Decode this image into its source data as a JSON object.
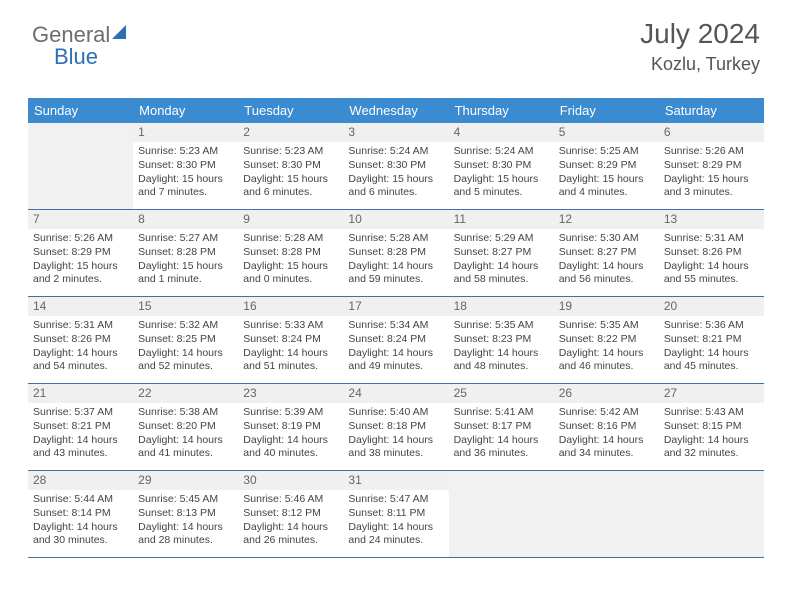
{
  "brand": {
    "part1": "General",
    "part2": "Blue"
  },
  "title": "July 2024",
  "location": "Kozlu, Turkey",
  "colors": {
    "header_bg": "#3b8bd0",
    "header_text": "#ffffff",
    "row_border": "#3b72a8",
    "daynum_bg": "#f0f0f0",
    "empty_bg": "#f1f1f1",
    "text": "#444444",
    "title_text": "#555555",
    "logo_gray": "#6e6e6e",
    "logo_blue": "#2e6fb6"
  },
  "dow": [
    "Sunday",
    "Monday",
    "Tuesday",
    "Wednesday",
    "Thursday",
    "Friday",
    "Saturday"
  ],
  "weeks": [
    [
      null,
      {
        "day": "1",
        "sunrise": "5:23 AM",
        "sunset": "8:30 PM",
        "daylight": "15 hours and 7 minutes."
      },
      {
        "day": "2",
        "sunrise": "5:23 AM",
        "sunset": "8:30 PM",
        "daylight": "15 hours and 6 minutes."
      },
      {
        "day": "3",
        "sunrise": "5:24 AM",
        "sunset": "8:30 PM",
        "daylight": "15 hours and 6 minutes."
      },
      {
        "day": "4",
        "sunrise": "5:24 AM",
        "sunset": "8:30 PM",
        "daylight": "15 hours and 5 minutes."
      },
      {
        "day": "5",
        "sunrise": "5:25 AM",
        "sunset": "8:29 PM",
        "daylight": "15 hours and 4 minutes."
      },
      {
        "day": "6",
        "sunrise": "5:26 AM",
        "sunset": "8:29 PM",
        "daylight": "15 hours and 3 minutes."
      }
    ],
    [
      {
        "day": "7",
        "sunrise": "5:26 AM",
        "sunset": "8:29 PM",
        "daylight": "15 hours and 2 minutes."
      },
      {
        "day": "8",
        "sunrise": "5:27 AM",
        "sunset": "8:28 PM",
        "daylight": "15 hours and 1 minute."
      },
      {
        "day": "9",
        "sunrise": "5:28 AM",
        "sunset": "8:28 PM",
        "daylight": "15 hours and 0 minutes."
      },
      {
        "day": "10",
        "sunrise": "5:28 AM",
        "sunset": "8:28 PM",
        "daylight": "14 hours and 59 minutes."
      },
      {
        "day": "11",
        "sunrise": "5:29 AM",
        "sunset": "8:27 PM",
        "daylight": "14 hours and 58 minutes."
      },
      {
        "day": "12",
        "sunrise": "5:30 AM",
        "sunset": "8:27 PM",
        "daylight": "14 hours and 56 minutes."
      },
      {
        "day": "13",
        "sunrise": "5:31 AM",
        "sunset": "8:26 PM",
        "daylight": "14 hours and 55 minutes."
      }
    ],
    [
      {
        "day": "14",
        "sunrise": "5:31 AM",
        "sunset": "8:26 PM",
        "daylight": "14 hours and 54 minutes."
      },
      {
        "day": "15",
        "sunrise": "5:32 AM",
        "sunset": "8:25 PM",
        "daylight": "14 hours and 52 minutes."
      },
      {
        "day": "16",
        "sunrise": "5:33 AM",
        "sunset": "8:24 PM",
        "daylight": "14 hours and 51 minutes."
      },
      {
        "day": "17",
        "sunrise": "5:34 AM",
        "sunset": "8:24 PM",
        "daylight": "14 hours and 49 minutes."
      },
      {
        "day": "18",
        "sunrise": "5:35 AM",
        "sunset": "8:23 PM",
        "daylight": "14 hours and 48 minutes."
      },
      {
        "day": "19",
        "sunrise": "5:35 AM",
        "sunset": "8:22 PM",
        "daylight": "14 hours and 46 minutes."
      },
      {
        "day": "20",
        "sunrise": "5:36 AM",
        "sunset": "8:21 PM",
        "daylight": "14 hours and 45 minutes."
      }
    ],
    [
      {
        "day": "21",
        "sunrise": "5:37 AM",
        "sunset": "8:21 PM",
        "daylight": "14 hours and 43 minutes."
      },
      {
        "day": "22",
        "sunrise": "5:38 AM",
        "sunset": "8:20 PM",
        "daylight": "14 hours and 41 minutes."
      },
      {
        "day": "23",
        "sunrise": "5:39 AM",
        "sunset": "8:19 PM",
        "daylight": "14 hours and 40 minutes."
      },
      {
        "day": "24",
        "sunrise": "5:40 AM",
        "sunset": "8:18 PM",
        "daylight": "14 hours and 38 minutes."
      },
      {
        "day": "25",
        "sunrise": "5:41 AM",
        "sunset": "8:17 PM",
        "daylight": "14 hours and 36 minutes."
      },
      {
        "day": "26",
        "sunrise": "5:42 AM",
        "sunset": "8:16 PM",
        "daylight": "14 hours and 34 minutes."
      },
      {
        "day": "27",
        "sunrise": "5:43 AM",
        "sunset": "8:15 PM",
        "daylight": "14 hours and 32 minutes."
      }
    ],
    [
      {
        "day": "28",
        "sunrise": "5:44 AM",
        "sunset": "8:14 PM",
        "daylight": "14 hours and 30 minutes."
      },
      {
        "day": "29",
        "sunrise": "5:45 AM",
        "sunset": "8:13 PM",
        "daylight": "14 hours and 28 minutes."
      },
      {
        "day": "30",
        "sunrise": "5:46 AM",
        "sunset": "8:12 PM",
        "daylight": "14 hours and 26 minutes."
      },
      {
        "day": "31",
        "sunrise": "5:47 AM",
        "sunset": "8:11 PM",
        "daylight": "14 hours and 24 minutes."
      },
      null,
      null,
      null
    ]
  ],
  "labels": {
    "sunrise": "Sunrise: ",
    "sunset": "Sunset: ",
    "daylight": "Daylight: "
  }
}
